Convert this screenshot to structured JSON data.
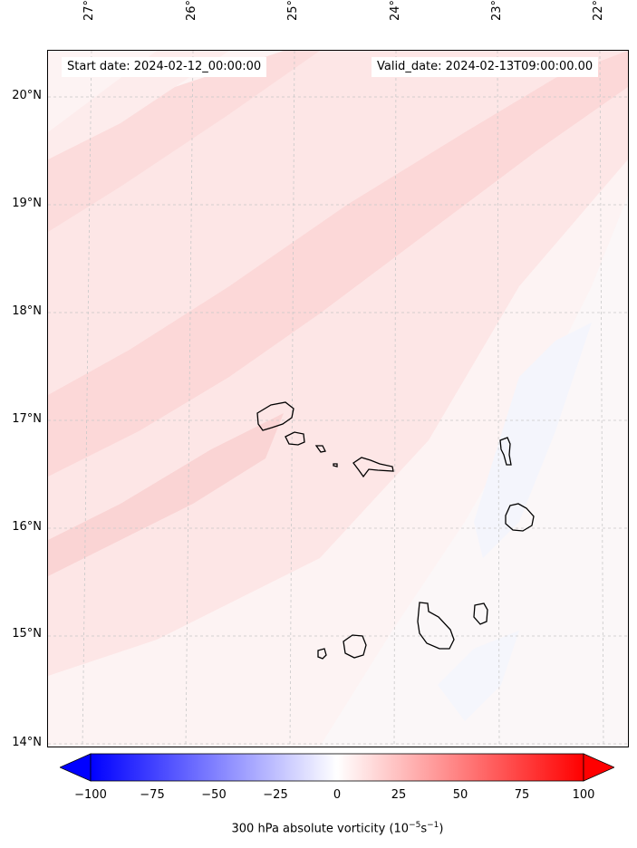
{
  "map": {
    "info": {
      "start_label": "Start date: 2024-02-12_00:00:00",
      "valid_label": "Valid_date: 2024-02-13T09:00:00.00"
    },
    "lon_labels": [
      "27°W",
      "26°W",
      "25°W",
      "24°W",
      "23°W",
      "22°W"
    ],
    "lat_labels": [
      "20°N",
      "19°N",
      "18°N",
      "17°N",
      "16°N",
      "15°N",
      "14°N"
    ],
    "colors": {
      "land_outline": "#000000",
      "gridline": "#c8c8c8",
      "field_light": "#fdf3f3",
      "field_mid": "#fde6e6",
      "field_strong": "#fcd8d8",
      "field_negative": "#f3f5fd"
    },
    "colorbar": {
      "ticks": [
        "−100",
        "−75",
        "−50",
        "−25",
        "0",
        "25",
        "50",
        "75",
        "100"
      ],
      "label": "300 hPa absolute vorticity (10",
      "label_exp1": "−5",
      "label_mid": "s",
      "label_exp2": "−1",
      "label_end": ")",
      "min_color": "#0000ff",
      "mid_color": "#ffffff",
      "max_color": "#ff0000"
    }
  }
}
